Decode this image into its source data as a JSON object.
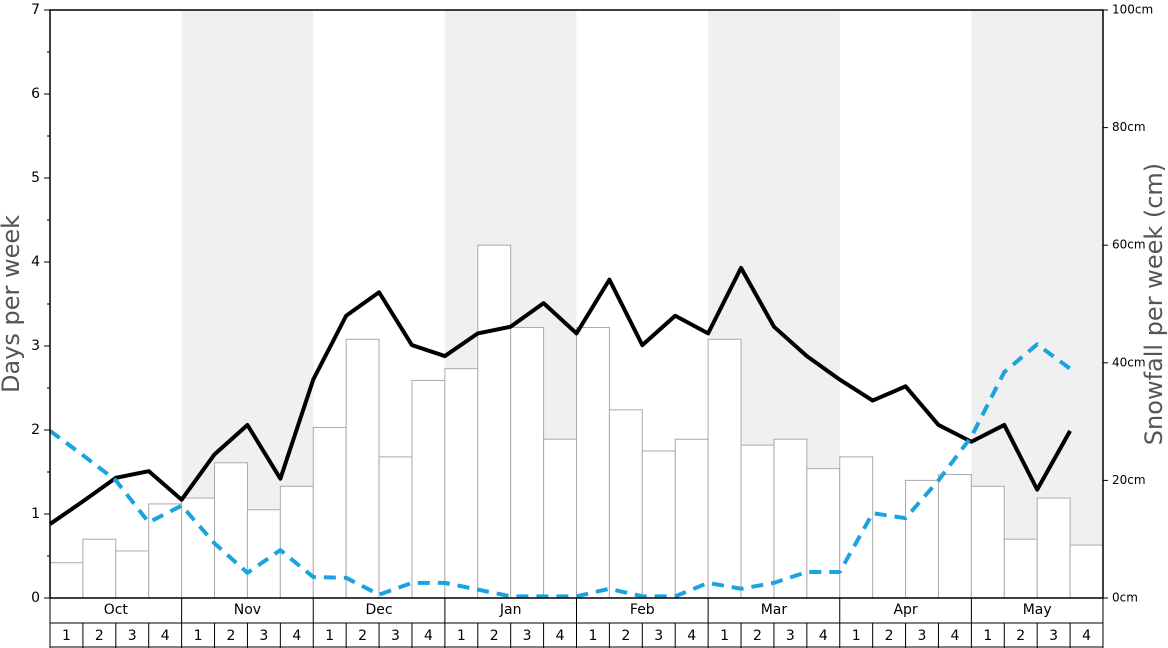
{
  "chart_data": {
    "type": "bar",
    "y_label": "Days per week",
    "y2_label": "Snowfall per week (cm)",
    "months": [
      "Oct",
      "Nov",
      "Dec",
      "Jan",
      "Feb",
      "Mar",
      "Apr",
      "May"
    ],
    "categories": [
      "1",
      "2",
      "3",
      "4",
      "1",
      "2",
      "3",
      "4",
      "1",
      "2",
      "3",
      "4",
      "1",
      "2",
      "3",
      "4",
      "1",
      "2",
      "3",
      "4",
      "1",
      "2",
      "3",
      "4",
      "1",
      "2",
      "3",
      "4",
      "1",
      "2",
      "3",
      "4"
    ],
    "ylim": [
      0,
      7
    ],
    "yticks": [
      0,
      1,
      2,
      3,
      4,
      5,
      6,
      7
    ],
    "y2lim": [
      0,
      100
    ],
    "y2ticks": [
      {
        "value": 0,
        "label": "0cm"
      },
      {
        "value": 20,
        "label": "20cm"
      },
      {
        "value": 40,
        "label": "40cm"
      },
      {
        "value": 60,
        "label": "60cm"
      },
      {
        "value": 80,
        "label": "80cm"
      },
      {
        "value": 100,
        "label": "100cm"
      }
    ],
    "shade_color": "#f0f0f0",
    "series": [
      {
        "type": "bar",
        "axis": "y2",
        "color": "#ffffff",
        "stroke": "#aaaaaa",
        "values": [
          6,
          10,
          8,
          16,
          17,
          23,
          15,
          19,
          29,
          44,
          24,
          37,
          39,
          60,
          46,
          27,
          46,
          32,
          25,
          27,
          44,
          26,
          27,
          22,
          24,
          0,
          20,
          21,
          19,
          10,
          17,
          9
        ]
      },
      {
        "type": "line",
        "color": "#000000",
        "dashed": false,
        "values": [
          0.88,
          1.15,
          1.43,
          1.51,
          1.17,
          1.71,
          2.06,
          1.42,
          2.6,
          3.36,
          3.64,
          3.01,
          2.88,
          3.15,
          3.23,
          3.51,
          3.15,
          3.79,
          3.01,
          3.36,
          3.15,
          3.93,
          3.23,
          2.88,
          2.6,
          2.35,
          2.52,
          2.06,
          1.86,
          2.06,
          1.29,
          1.99
        ]
      },
      {
        "type": "line",
        "color": "#1aa3e0",
        "dashed": true,
        "values": [
          1.99,
          1.7,
          1.4,
          0.9,
          1.1,
          0.65,
          0.3,
          0.57,
          0.25,
          0.24,
          0.04,
          0.18,
          0.18,
          0.1,
          0.02,
          0.02,
          0.02,
          0.11,
          0.02,
          0.02,
          0.18,
          0.11,
          0.18,
          0.31,
          0.31,
          1.01,
          0.95,
          1.4,
          1.92,
          2.69,
          3.02,
          2.73
        ]
      }
    ]
  }
}
